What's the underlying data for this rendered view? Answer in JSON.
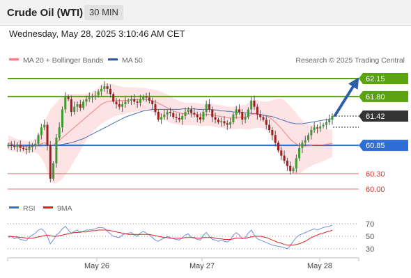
{
  "header": {
    "title": "Crude Oil (WTI)",
    "timeframe": "30 MIN"
  },
  "timestamp": "Wednesday, May 28, 2025 3:10:46 AM CET",
  "legend": [
    {
      "label": "MA 20 + Bollinger Bands",
      "color": "#f08080"
    },
    {
      "label": "MA 50",
      "color": "#2f5597"
    }
  ],
  "credit": "Research © 2025 Trading Central",
  "chart_data": {
    "type": "candlestick",
    "y_range": [
      59.85,
      62.65
    ],
    "levels": [
      {
        "value": 62.15,
        "label": "62.15",
        "kind": "resistance",
        "color": "#5aa30f"
      },
      {
        "value": 61.8,
        "label": "61.80",
        "kind": "resistance",
        "color": "#5aa30f"
      },
      {
        "value": 61.42,
        "label": "61.42",
        "kind": "last-price",
        "color": "#333333"
      },
      {
        "value": 60.85,
        "label": "60.85",
        "kind": "pivot",
        "color": "#2e6dd6"
      },
      {
        "value": 60.3,
        "label": "60.30",
        "kind": "support",
        "color": "#e8726e"
      },
      {
        "value": 60.0,
        "label": "60.00",
        "kind": "support",
        "color": "#e8726e"
      }
    ],
    "x_ticks": [
      "May 26",
      "May 27",
      "May 28"
    ],
    "closes": [
      60.86,
      60.84,
      60.82,
      60.86,
      60.8,
      60.78,
      60.76,
      60.82,
      60.84,
      60.88,
      61.05,
      61.2,
      61.25,
      60.85,
      60.2,
      60.5,
      61,
      61.2,
      61.55,
      61.8,
      61.75,
      61.5,
      61.6,
      61.65,
      61.58,
      61.7,
      61.75,
      61.78,
      61.8,
      61.82,
      61.9,
      61.95,
      62,
      61.95,
      61.85,
      61.7,
      61.65,
      61.6,
      61.65,
      61.7,
      61.72,
      61.75,
      61.7,
      61.68,
      61.75,
      61.8,
      61.78,
      61.72,
      61.65,
      61.5,
      61.35,
      61.4,
      61.45,
      61.5,
      61.48,
      61.4,
      61.38,
      61.35,
      61.42,
      61.5,
      61.55,
      61.48,
      61.45,
      61.4,
      61.35,
      61.5,
      61.65,
      61.55,
      61.4,
      61.35,
      61.3,
      61.32,
      61.28,
      61.25,
      61.3,
      61.45,
      61.55,
      61.5,
      61.35,
      61.4,
      61.55,
      61.72,
      61.6,
      61.45,
      61.4,
      61.35,
      61.25,
      61.15,
      61.05,
      60.9,
      60.75,
      60.65,
      60.55,
      60.45,
      60.35,
      60.4,
      60.6,
      60.8,
      60.9,
      60.95,
      61.05,
      61.15,
      61.2,
      61.18,
      61.22,
      61.25,
      61.3,
      61.35,
      61.42
    ],
    "ma20": [
      60.9,
      60.88,
      60.86,
      60.85,
      60.84,
      60.83,
      60.82,
      60.82,
      60.83,
      60.84,
      60.86,
      60.88,
      60.9,
      60.88,
      60.85,
      60.86,
      60.9,
      60.95,
      61,
      61.05,
      61.1,
      61.15,
      61.2,
      61.25,
      61.3,
      61.35,
      61.4,
      61.45,
      61.5,
      61.55,
      61.6,
      61.65,
      61.68,
      61.7,
      61.71,
      61.72,
      61.72,
      61.72,
      61.72,
      61.72,
      61.73,
      61.74,
      61.74,
      61.74,
      61.74,
      61.74,
      61.74,
      61.73,
      61.72,
      61.7,
      61.67,
      61.64,
      61.61,
      61.58,
      61.55,
      61.52,
      61.5,
      61.48,
      61.47,
      61.46,
      61.46,
      61.46,
      61.46,
      61.45,
      61.44,
      61.44,
      61.45,
      61.45,
      61.44,
      61.43,
      61.42,
      61.41,
      61.4,
      61.39,
      61.38,
      61.38,
      61.39,
      61.4,
      61.4,
      61.4,
      61.42,
      61.45,
      61.46,
      61.46,
      61.45,
      61.44,
      61.42,
      61.39,
      61.35,
      61.3,
      61.24,
      61.18,
      61.11,
      61.04,
      60.97,
      60.92,
      60.88,
      60.85,
      60.84,
      60.84,
      60.84,
      60.85,
      60.86,
      60.86,
      60.86,
      60.86,
      60.87,
      60.88,
      60.89
    ],
    "ma50": [
      60.85,
      60.85,
      60.84,
      60.84,
      60.84,
      60.84,
      60.84,
      60.84,
      60.84,
      60.84,
      60.84,
      60.84,
      60.85,
      60.85,
      60.85,
      60.85,
      60.86,
      60.86,
      60.87,
      60.88,
      60.89,
      60.9,
      60.92,
      60.94,
      60.96,
      60.98,
      61.01,
      61.04,
      61.07,
      61.1,
      61.13,
      61.16,
      61.19,
      61.22,
      61.25,
      61.28,
      61.31,
      61.34,
      61.37,
      61.4,
      61.42,
      61.44,
      61.46,
      61.48,
      61.5,
      61.52,
      61.53,
      61.54,
      61.55,
      61.55,
      61.55,
      61.55,
      61.55,
      61.55,
      61.55,
      61.55,
      61.55,
      61.55,
      61.56,
      61.56,
      61.56,
      61.56,
      61.56,
      61.55,
      61.55,
      61.55,
      61.55,
      61.55,
      61.54,
      61.54,
      61.53,
      61.52,
      61.52,
      61.51,
      61.51,
      61.5,
      61.5,
      61.49,
      61.49,
      61.48,
      61.48,
      61.47,
      61.47,
      61.46,
      61.45,
      61.44,
      61.43,
      61.42,
      61.41,
      61.39,
      61.37,
      61.35,
      61.33,
      61.31,
      61.29,
      61.28,
      61.27,
      61.27,
      61.27,
      61.28,
      61.29,
      61.3,
      61.31,
      61.32,
      61.33,
      61.34,
      61.35,
      61.36,
      61.37
    ],
    "bb_width": [
      0.15,
      0.14,
      0.13,
      0.12,
      0.12,
      0.12,
      0.12,
      0.12,
      0.12,
      0.13,
      0.18,
      0.28,
      0.4,
      0.55,
      0.7,
      0.75,
      0.78,
      0.8,
      0.8,
      0.78,
      0.75,
      0.7,
      0.65,
      0.6,
      0.55,
      0.5,
      0.45,
      0.42,
      0.4,
      0.38,
      0.38,
      0.38,
      0.38,
      0.36,
      0.34,
      0.32,
      0.3,
      0.28,
      0.27,
      0.26,
      0.25,
      0.24,
      0.24,
      0.23,
      0.23,
      0.23,
      0.22,
      0.22,
      0.22,
      0.23,
      0.24,
      0.25,
      0.26,
      0.26,
      0.26,
      0.25,
      0.24,
      0.23,
      0.22,
      0.22,
      0.22,
      0.22,
      0.22,
      0.22,
      0.22,
      0.22,
      0.22,
      0.22,
      0.22,
      0.22,
      0.22,
      0.22,
      0.22,
      0.22,
      0.22,
      0.22,
      0.22,
      0.22,
      0.23,
      0.24,
      0.26,
      0.28,
      0.28,
      0.27,
      0.26,
      0.26,
      0.28,
      0.32,
      0.38,
      0.45,
      0.52,
      0.58,
      0.62,
      0.64,
      0.64,
      0.62,
      0.6,
      0.55,
      0.5,
      0.45,
      0.42,
      0.4,
      0.38,
      0.36,
      0.34,
      0.32,
      0.3,
      0.28,
      0.27
    ],
    "rsi": {
      "legend": [
        {
          "label": "RSI",
          "color": "#3d6fd1"
        },
        {
          "label": "9MA",
          "color": "#e02020"
        }
      ],
      "ticks": [
        "70",
        "50",
        "30"
      ],
      "y_range": [
        20,
        80
      ],
      "rsi": [
        48,
        50,
        46,
        48,
        45,
        44,
        43,
        49,
        52,
        55,
        60,
        62,
        58,
        50,
        38,
        44,
        52,
        56,
        62,
        66,
        60,
        55,
        58,
        60,
        56,
        58,
        60,
        60,
        61,
        62,
        64,
        64,
        63,
        58,
        54,
        50,
        49,
        48,
        52,
        54,
        55,
        56,
        52,
        50,
        55,
        58,
        55,
        52,
        48,
        44,
        42,
        45,
        47,
        50,
        48,
        46,
        45,
        44,
        48,
        52,
        54,
        48,
        47,
        45,
        44,
        52,
        56,
        50,
        45,
        44,
        42,
        44,
        42,
        41,
        44,
        52,
        56,
        52,
        46,
        48,
        55,
        60,
        52,
        46,
        44,
        42,
        40,
        38,
        36,
        35,
        34,
        33,
        32,
        30,
        35,
        42,
        48,
        52,
        54,
        56,
        58,
        60,
        62,
        60,
        62,
        64,
        65,
        66,
        68
      ],
      "ma9": [
        50,
        50,
        49,
        49,
        48,
        48,
        47,
        47,
        47,
        48,
        49,
        50,
        51,
        52,
        51,
        50,
        50,
        51,
        52,
        53,
        54,
        55,
        56,
        56,
        57,
        57,
        57,
        58,
        59,
        59,
        60,
        60,
        60,
        60,
        59,
        58,
        57,
        56,
        55,
        54,
        53,
        53,
        53,
        53,
        53,
        53,
        53,
        53,
        52,
        51,
        50,
        49,
        48,
        48,
        47,
        47,
        47,
        47,
        47,
        48,
        48,
        48,
        48,
        47,
        47,
        48,
        48,
        48,
        48,
        47,
        46,
        46,
        45,
        45,
        45,
        46,
        47,
        47,
        47,
        47,
        48,
        49,
        50,
        50,
        50,
        49,
        48,
        46,
        44,
        42,
        40,
        39,
        37,
        36,
        36,
        36,
        37,
        38,
        40,
        42,
        45,
        48,
        50,
        52,
        54,
        55,
        57,
        58,
        60
      ]
    }
  }
}
